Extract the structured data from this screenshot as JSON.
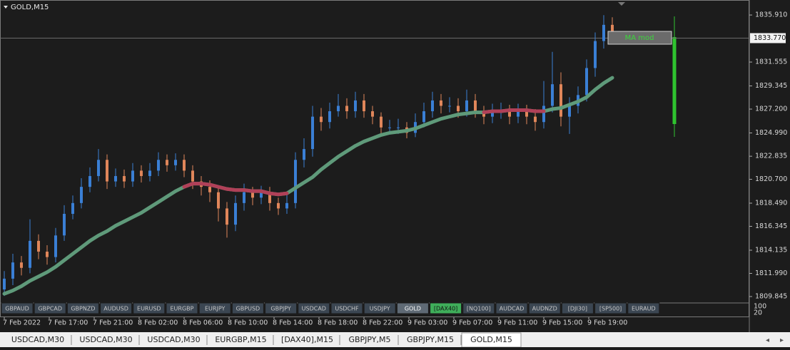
{
  "chart_data": {
    "type": "candlestick",
    "title": "GOLD,M15",
    "indicator_label": "MA mod",
    "up_color": "#3a7fd5",
    "down_color": "#e0865a",
    "open": [
      1810.5,
      1811.5,
      1813.0,
      1812.5,
      1815.0,
      1814.0,
      1813.5,
      1815.5,
      1817.5,
      1818.5,
      1820.0,
      1821.0,
      1822.5,
      1820.5,
      1821.0,
      1820.5,
      1821.5,
      1821.0,
      1821.5,
      1822.5,
      1822.0,
      1822.5,
      1821.5,
      1820.5,
      1820.0,
      1819.5,
      1818.0,
      1816.5,
      1818.5,
      1819.5,
      1819.0,
      1819.5,
      1818.5,
      1818.0,
      1818.5,
      1822.5,
      1823.5,
      1826.5,
      1826.0,
      1827.0,
      1827.5,
      1827.0,
      1828.0,
      1827.0,
      1826.5,
      1825.5,
      1825.5,
      1825.5,
      1825.0,
      1826.0,
      1827.0,
      1828.0,
      1827.5,
      1827.5,
      1827.0,
      1828.0,
      1827.0,
      1826.5,
      1827.0,
      1827.0,
      1826.5,
      1827.0,
      1826.5,
      1826.0,
      1827.5,
      1829.5,
      1826.5,
      1827.5,
      1828.5,
      1831.0,
      1833.5,
      1835.0
    ],
    "high": [
      1812.2,
      1813.8,
      1813.6,
      1817.0,
      1815.6,
      1814.6,
      1816.2,
      1818.3,
      1819.2,
      1820.8,
      1821.8,
      1823.5,
      1823.0,
      1821.7,
      1821.6,
      1822.2,
      1822.0,
      1822.2,
      1823.2,
      1823.0,
      1823.1,
      1823.0,
      1822.0,
      1821.0,
      1820.6,
      1820.0,
      1818.6,
      1819.2,
      1820.3,
      1820.0,
      1820.1,
      1820.0,
      1819.0,
      1819.3,
      1823.2,
      1824.5,
      1827.5,
      1827.3,
      1827.8,
      1828.6,
      1828.2,
      1828.8,
      1828.6,
      1827.5,
      1826.9,
      1826.2,
      1826.3,
      1826.0,
      1826.8,
      1827.8,
      1828.8,
      1828.6,
      1828.3,
      1828.2,
      1829.0,
      1828.6,
      1827.5,
      1827.7,
      1827.8,
      1827.6,
      1827.7,
      1827.6,
      1827.2,
      1829.8,
      1832.5,
      1830.6,
      1828.3,
      1829.3,
      1831.8,
      1834.3,
      1835.9,
      1835.7
    ],
    "low": [
      1809.9,
      1810.9,
      1811.8,
      1812.0,
      1813.3,
      1812.8,
      1813.0,
      1815.0,
      1817.0,
      1818.0,
      1819.5,
      1820.5,
      1819.8,
      1820.0,
      1819.9,
      1820.0,
      1820.4,
      1820.5,
      1821.0,
      1821.4,
      1821.5,
      1820.9,
      1819.8,
      1819.2,
      1818.6,
      1816.8,
      1815.3,
      1815.9,
      1817.8,
      1818.3,
      1818.4,
      1817.8,
      1817.4,
      1817.5,
      1818.0,
      1821.8,
      1822.8,
      1825.2,
      1825.4,
      1826.5,
      1826.3,
      1826.4,
      1826.4,
      1825.8,
      1824.9,
      1824.9,
      1824.9,
      1824.5,
      1824.6,
      1825.5,
      1826.4,
      1826.8,
      1826.9,
      1826.4,
      1826.5,
      1826.4,
      1825.8,
      1825.9,
      1826.3,
      1825.8,
      1825.9,
      1825.8,
      1825.2,
      1825.4,
      1826.9,
      1825.6,
      1824.9,
      1826.8,
      1827.9,
      1830.2,
      1832.8,
      1833.3
    ],
    "close": [
      1811.5,
      1813.0,
      1812.5,
      1815.0,
      1814.0,
      1813.5,
      1815.5,
      1817.5,
      1818.5,
      1820.0,
      1821.0,
      1822.5,
      1820.5,
      1821.0,
      1820.5,
      1821.5,
      1821.0,
      1821.5,
      1822.5,
      1822.0,
      1822.5,
      1821.5,
      1820.5,
      1820.0,
      1819.5,
      1818.0,
      1816.5,
      1818.5,
      1819.5,
      1819.0,
      1819.5,
      1818.5,
      1818.0,
      1818.5,
      1822.5,
      1823.5,
      1826.5,
      1826.0,
      1827.0,
      1827.5,
      1827.0,
      1828.0,
      1827.0,
      1826.5,
      1825.5,
      1825.5,
      1825.5,
      1825.0,
      1826.0,
      1827.0,
      1828.0,
      1827.5,
      1827.5,
      1827.0,
      1828.0,
      1827.0,
      1826.5,
      1827.0,
      1827.0,
      1826.5,
      1827.0,
      1826.5,
      1826.0,
      1827.5,
      1829.5,
      1826.5,
      1827.5,
      1828.5,
      1831.0,
      1833.5,
      1835.0,
      1834.0
    ],
    "series": [
      {
        "color": "#5f9a7a",
        "values": [
          1810.1,
          1810.4,
          1810.8,
          1811.3,
          1811.7,
          1812.1,
          1812.6,
          1813.2,
          1813.8,
          1814.4,
          1815.0,
          1815.5,
          1815.9,
          1816.4,
          1816.8,
          1817.2,
          1817.6,
          1818.1,
          1818.6,
          1819.1,
          1819.6,
          1820.0,
          1820.3,
          1820.3,
          1820.2,
          1820.0,
          1819.8,
          1819.7,
          1819.7,
          1819.6,
          1819.6,
          1819.4,
          1819.3,
          1819.4,
          1819.9,
          1820.4,
          1820.9,
          1821.6,
          1822.2,
          1822.8,
          1823.3,
          1823.8,
          1824.2,
          1824.5,
          1824.8,
          1825.0,
          1825.1,
          1825.2,
          1825.4,
          1825.7,
          1826.0,
          1826.3,
          1826.5,
          1826.7,
          1826.8,
          1826.9,
          1826.9,
          1827.0,
          1827.0,
          1827.1,
          1827.1,
          1827.1,
          1827.0,
          1827.0,
          1827.2,
          1827.3,
          1827.6,
          1827.9,
          1828.3,
          1829.0,
          1829.6,
          1830.1
        ]
      },
      {
        "color": "#b04058",
        "values": [
          null,
          null,
          null,
          null,
          null,
          null,
          null,
          null,
          null,
          null,
          null,
          null,
          null,
          null,
          null,
          null,
          null,
          null,
          null,
          null,
          null,
          1820.0,
          1820.3,
          1820.3,
          1820.2,
          1820.0,
          1819.8,
          1819.7,
          1819.7,
          1819.6,
          1819.6,
          1819.4,
          1819.3,
          1819.4,
          null,
          null,
          null,
          null,
          null,
          null,
          null,
          null,
          null,
          null,
          null,
          null,
          null,
          null,
          null,
          null,
          null,
          null,
          null,
          null,
          null,
          null,
          1826.9,
          1827.0,
          1827.0,
          1827.1,
          1827.1,
          1827.1,
          1827.0,
          1827.0,
          null,
          null,
          null,
          null,
          null,
          null,
          null,
          null
        ]
      }
    ],
    "current_price": {
      "value": 1833.77,
      "label": "1833.770"
    },
    "ylim": [
      1809.25,
      1837.3
    ],
    "yticks": [
      {
        "value": 1835.91,
        "label": "1835.910"
      },
      {
        "value": 1831.555,
        "label": "1831.555"
      },
      {
        "value": 1829.345,
        "label": "1829.345"
      },
      {
        "value": 1827.2,
        "label": "1827.200"
      },
      {
        "value": 1824.99,
        "label": "1824.990"
      },
      {
        "value": 1822.835,
        "label": "1822.835"
      },
      {
        "value": 1820.7,
        "label": "1820.700"
      },
      {
        "value": 1818.49,
        "label": "1818.490"
      },
      {
        "value": 1816.345,
        "label": "1816.345"
      },
      {
        "value": 1814.135,
        "label": "1814.135"
      },
      {
        "value": 1811.99,
        "label": "1811.990"
      },
      {
        "value": 1809.845,
        "label": "1809.845"
      }
    ],
    "time_labels": [
      "7 Feb 2022",
      "7 Feb 17:00",
      "7 Feb 21:00",
      "8 Feb 02:00",
      "8 Feb 06:00",
      "8 Feb 10:00",
      "8 Feb 14:00",
      "8 Feb 18:00",
      "8 Feb 22:00",
      "9 Feb 03:00",
      "9 Feb 07:00",
      "9 Feb 11:00",
      "9 Feb 15:00",
      "9 Feb 19:00"
    ]
  },
  "subwindow_ticks": [
    100,
    20
  ],
  "symbol_buttons": [
    "GBPAUD",
    "GBPCAD",
    "GBPNZD",
    "AUDUSD",
    "EURUSD",
    "EURGBP",
    "EURJPY",
    "GBPUSD",
    "GBPJPY",
    "USDCAD",
    "USDCHF",
    "USDJPY",
    "GOLD",
    "[DAX40]",
    "[NQ100]",
    "AUDCAD",
    "AUDNZD",
    "[DJI30]",
    "[SP500]",
    "EURAUD"
  ],
  "tabs": [
    "USDCAD,M30",
    "USDCAD,M30",
    "USDCAD,M30",
    "EURGBP,M15",
    "[DAX40],M15",
    "GBPJPY,M5",
    "GBPJPY,M15",
    "GOLD,M15"
  ]
}
